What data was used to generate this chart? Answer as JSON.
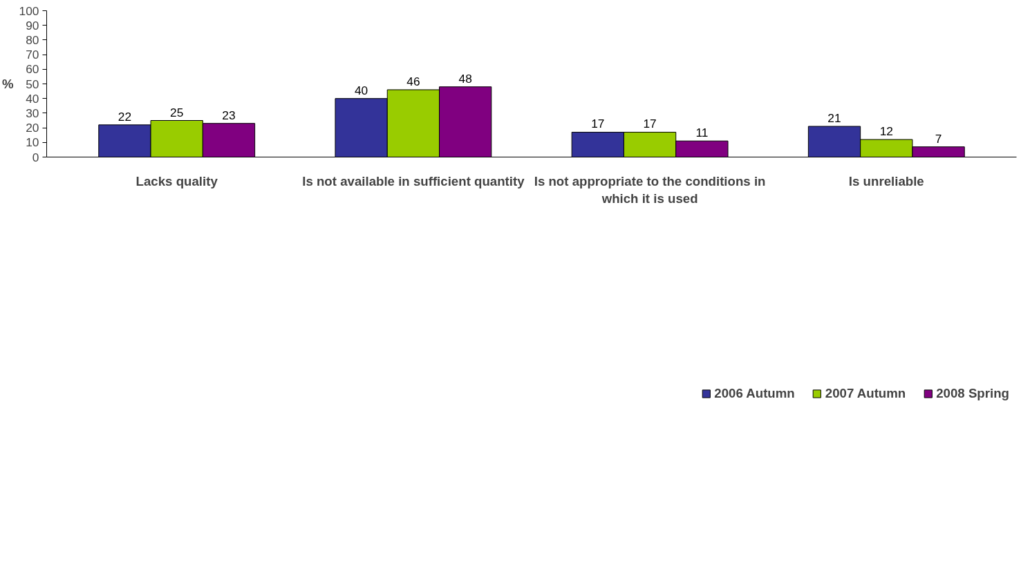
{
  "chart_data": {
    "type": "bar",
    "ylabel": "%",
    "categories": [
      "Lacks quality",
      "Is not available in sufficient quantity",
      "Is not appropriate to the conditions in which it is used",
      "Is unreliable"
    ],
    "series": [
      {
        "name": "2006 Autumn",
        "color": "#333399",
        "values": [
          22,
          40,
          17,
          21
        ]
      },
      {
        "name": "2007 Autumn",
        "color": "#99cc00",
        "values": [
          25,
          46,
          17,
          12
        ]
      },
      {
        "name": "2008 Spring",
        "color": "#800080",
        "values": [
          23,
          48,
          11,
          7
        ]
      }
    ],
    "ylim": [
      0,
      100
    ],
    "yticks": [
      0,
      10,
      20,
      30,
      40,
      50,
      60,
      70,
      80,
      90,
      100
    ],
    "grid": false,
    "legend": "bottom",
    "data_labels": true
  }
}
